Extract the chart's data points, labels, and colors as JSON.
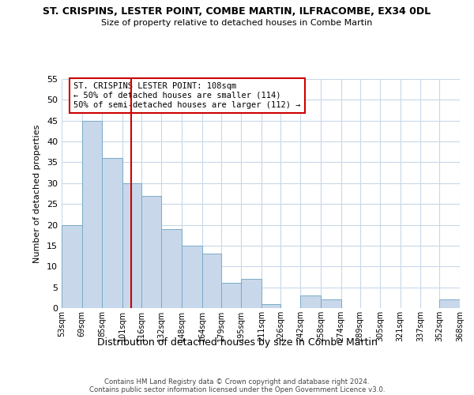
{
  "title": "ST. CRISPINS, LESTER POINT, COMBE MARTIN, ILFRACOMBE, EX34 0DL",
  "subtitle": "Size of property relative to detached houses in Combe Martin",
  "xlabel": "Distribution of detached houses by size in Combe Martin",
  "ylabel": "Number of detached properties",
  "bar_color": "#c8d8ea",
  "bar_edge_color": "#7aaac8",
  "bin_edges": [
    53,
    69,
    85,
    101,
    116,
    132,
    148,
    164,
    179,
    195,
    211,
    226,
    242,
    258,
    274,
    289,
    305,
    321,
    337,
    352,
    368
  ],
  "bin_labels": [
    "53sqm",
    "69sqm",
    "85sqm",
    "101sqm",
    "116sqm",
    "132sqm",
    "148sqm",
    "164sqm",
    "179sqm",
    "195sqm",
    "211sqm",
    "226sqm",
    "242sqm",
    "258sqm",
    "274sqm",
    "289sqm",
    "305sqm",
    "321sqm",
    "337sqm",
    "352sqm",
    "368sqm"
  ],
  "counts": [
    20,
    45,
    36,
    30,
    27,
    19,
    15,
    13,
    6,
    7,
    1,
    0,
    3,
    2,
    0,
    0,
    0,
    0,
    0,
    2
  ],
  "vline_x": 108,
  "vline_color": "#cc0000",
  "ylim": [
    0,
    55
  ],
  "yticks": [
    0,
    5,
    10,
    15,
    20,
    25,
    30,
    35,
    40,
    45,
    50,
    55
  ],
  "annotation_title": "ST. CRISPINS LESTER POINT: 108sqm",
  "annotation_line1": "← 50% of detached houses are smaller (114)",
  "annotation_line2": "50% of semi-detached houses are larger (112) →",
  "footer_line1": "Contains HM Land Registry data © Crown copyright and database right 2024.",
  "footer_line2": "Contains public sector information licensed under the Open Government Licence v3.0.",
  "background_color": "#ffffff",
  "grid_color": "#c8d8e8"
}
